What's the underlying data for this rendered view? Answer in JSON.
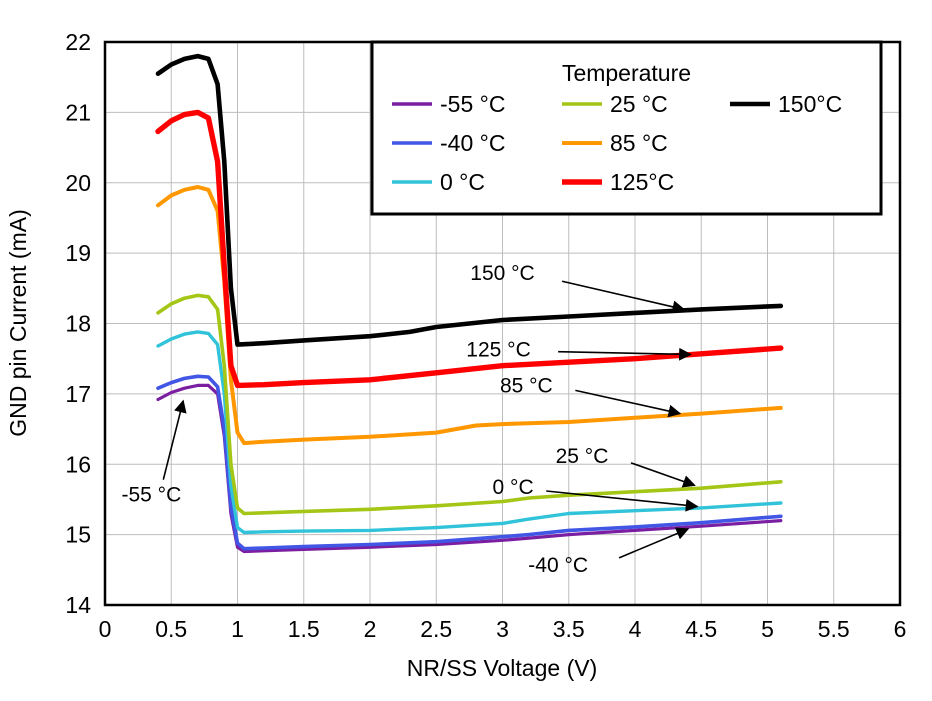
{
  "chart_data": {
    "type": "line",
    "title": "",
    "xlabel": "NR/SS Voltage (V)",
    "ylabel": "GND pin Current (mA)",
    "xlim": [
      0,
      6
    ],
    "ylim": [
      14,
      22
    ],
    "xticks": [
      0,
      0.5,
      1,
      1.5,
      2,
      2.5,
      3,
      3.5,
      4,
      4.5,
      5,
      5.5,
      6
    ],
    "yticks": [
      14,
      15,
      16,
      17,
      18,
      19,
      20,
      21,
      22
    ],
    "grid": true,
    "colors": {
      "grid": "#bdbdbd",
      "axis": "#000000",
      "background": "#ffffff"
    },
    "legend": {
      "title": "Temperature",
      "position": "top-right",
      "entries": [
        "-55 °C",
        "-40 °C",
        "0 °C",
        "25 °C",
        "85 °C",
        "125°C",
        "150°C"
      ]
    },
    "series": [
      {
        "name": "-55 °C",
        "color": "#7B1FA2",
        "width": 3.2,
        "points": [
          [
            0.4,
            16.92
          ],
          [
            0.5,
            17.02
          ],
          [
            0.6,
            17.08
          ],
          [
            0.7,
            17.12
          ],
          [
            0.78,
            17.12
          ],
          [
            0.85,
            17.0
          ],
          [
            0.9,
            16.4
          ],
          [
            0.95,
            15.3
          ],
          [
            1.0,
            14.82
          ],
          [
            1.05,
            14.76
          ],
          [
            1.2,
            14.77
          ],
          [
            1.5,
            14.79
          ],
          [
            2.0,
            14.82
          ],
          [
            2.5,
            14.86
          ],
          [
            3.0,
            14.92
          ],
          [
            3.2,
            14.95
          ],
          [
            3.5,
            15.0
          ],
          [
            4.0,
            15.06
          ],
          [
            4.5,
            15.12
          ],
          [
            5.1,
            15.2
          ]
        ]
      },
      {
        "name": "-40 °C",
        "color": "#4156E4",
        "width": 3.6,
        "points": [
          [
            0.4,
            17.08
          ],
          [
            0.5,
            17.16
          ],
          [
            0.6,
            17.22
          ],
          [
            0.7,
            17.25
          ],
          [
            0.78,
            17.24
          ],
          [
            0.85,
            17.1
          ],
          [
            0.9,
            16.5
          ],
          [
            0.95,
            15.4
          ],
          [
            1.0,
            14.88
          ],
          [
            1.05,
            14.8
          ],
          [
            1.2,
            14.81
          ],
          [
            1.5,
            14.83
          ],
          [
            2.0,
            14.86
          ],
          [
            2.5,
            14.9
          ],
          [
            3.0,
            14.97
          ],
          [
            3.2,
            15.0
          ],
          [
            3.5,
            15.06
          ],
          [
            4.0,
            15.11
          ],
          [
            4.5,
            15.17
          ],
          [
            5.1,
            15.26
          ]
        ]
      },
      {
        "name": "0 °C",
        "color": "#30C3D9",
        "width": 3.4,
        "points": [
          [
            0.4,
            17.68
          ],
          [
            0.5,
            17.78
          ],
          [
            0.6,
            17.85
          ],
          [
            0.7,
            17.88
          ],
          [
            0.78,
            17.86
          ],
          [
            0.85,
            17.7
          ],
          [
            0.9,
            17.0
          ],
          [
            0.95,
            15.7
          ],
          [
            1.0,
            15.1
          ],
          [
            1.05,
            15.03
          ],
          [
            1.2,
            15.04
          ],
          [
            1.5,
            15.05
          ],
          [
            2.0,
            15.06
          ],
          [
            2.5,
            15.1
          ],
          [
            3.0,
            15.16
          ],
          [
            3.2,
            15.22
          ],
          [
            3.5,
            15.3
          ],
          [
            4.0,
            15.34
          ],
          [
            4.5,
            15.38
          ],
          [
            5.1,
            15.45
          ]
        ]
      },
      {
        "name": "25 °C",
        "color": "#A4C616",
        "width": 3.6,
        "points": [
          [
            0.4,
            18.15
          ],
          [
            0.5,
            18.28
          ],
          [
            0.6,
            18.36
          ],
          [
            0.7,
            18.4
          ],
          [
            0.78,
            18.38
          ],
          [
            0.85,
            18.2
          ],
          [
            0.9,
            17.4
          ],
          [
            0.95,
            16.0
          ],
          [
            1.0,
            15.38
          ],
          [
            1.05,
            15.3
          ],
          [
            1.2,
            15.31
          ],
          [
            1.5,
            15.33
          ],
          [
            2.0,
            15.36
          ],
          [
            2.5,
            15.41
          ],
          [
            3.0,
            15.47
          ],
          [
            3.2,
            15.52
          ],
          [
            3.5,
            15.56
          ],
          [
            4.0,
            15.61
          ],
          [
            4.5,
            15.66
          ],
          [
            5.1,
            15.75
          ]
        ]
      },
      {
        "name": "85 °C",
        "color": "#FF9800",
        "width": 4,
        "points": [
          [
            0.4,
            19.68
          ],
          [
            0.5,
            19.82
          ],
          [
            0.6,
            19.9
          ],
          [
            0.7,
            19.94
          ],
          [
            0.78,
            19.9
          ],
          [
            0.85,
            19.6
          ],
          [
            0.9,
            18.6
          ],
          [
            0.95,
            17.2
          ],
          [
            1.0,
            16.45
          ],
          [
            1.05,
            16.3
          ],
          [
            1.2,
            16.32
          ],
          [
            1.5,
            16.35
          ],
          [
            2.0,
            16.39
          ],
          [
            2.5,
            16.45
          ],
          [
            2.8,
            16.55
          ],
          [
            3.0,
            16.57
          ],
          [
            3.5,
            16.6
          ],
          [
            4.0,
            16.66
          ],
          [
            4.5,
            16.72
          ],
          [
            5.1,
            16.8
          ]
        ]
      },
      {
        "name": "125°C",
        "color": "#FF0000",
        "width": 5.4,
        "points": [
          [
            0.4,
            20.73
          ],
          [
            0.5,
            20.88
          ],
          [
            0.6,
            20.97
          ],
          [
            0.7,
            21.0
          ],
          [
            0.78,
            20.92
          ],
          [
            0.85,
            20.3
          ],
          [
            0.9,
            18.8
          ],
          [
            0.95,
            17.4
          ],
          [
            1.0,
            17.12
          ],
          [
            1.2,
            17.13
          ],
          [
            1.5,
            17.16
          ],
          [
            2.0,
            17.2
          ],
          [
            2.5,
            17.3
          ],
          [
            3.0,
            17.4
          ],
          [
            3.5,
            17.45
          ],
          [
            4.0,
            17.5
          ],
          [
            4.5,
            17.57
          ],
          [
            5.1,
            17.65
          ]
        ]
      },
      {
        "name": "150°C",
        "color": "#000000",
        "width": 4.6,
        "points": [
          [
            0.4,
            21.55
          ],
          [
            0.5,
            21.68
          ],
          [
            0.6,
            21.76
          ],
          [
            0.7,
            21.8
          ],
          [
            0.78,
            21.76
          ],
          [
            0.85,
            21.4
          ],
          [
            0.9,
            20.3
          ],
          [
            0.95,
            18.5
          ],
          [
            1.0,
            17.7
          ],
          [
            1.2,
            17.72
          ],
          [
            1.5,
            17.76
          ],
          [
            2.0,
            17.82
          ],
          [
            2.3,
            17.88
          ],
          [
            2.5,
            17.95
          ],
          [
            3.0,
            18.05
          ],
          [
            3.5,
            18.1
          ],
          [
            4.0,
            18.15
          ],
          [
            4.5,
            18.2
          ],
          [
            5.1,
            18.25
          ]
        ]
      }
    ],
    "annotations": [
      {
        "label": "150 °C",
        "text": [
          3.0,
          18.72
        ],
        "line": [
          [
            3.45,
            18.6
          ],
          [
            4.37,
            18.2
          ]
        ]
      },
      {
        "label": "125 °C",
        "text": [
          2.97,
          17.63
        ],
        "line": [
          [
            3.42,
            17.6
          ],
          [
            4.42,
            17.56
          ]
        ]
      },
      {
        "label": "85 °C",
        "text": [
          3.18,
          17.12
        ],
        "line": [
          [
            3.55,
            17.05
          ],
          [
            4.34,
            16.72
          ]
        ]
      },
      {
        "label": "25 °C",
        "text": [
          3.6,
          16.12
        ],
        "line": [
          [
            3.97,
            16.02
          ],
          [
            4.45,
            15.7
          ]
        ]
      },
      {
        "label": "0 °C",
        "text": [
          3.08,
          15.68
        ],
        "line": [
          [
            3.33,
            15.62
          ],
          [
            4.47,
            15.4
          ]
        ]
      },
      {
        "label": "-40 °C",
        "text": [
          3.42,
          14.57
        ],
        "line": [
          [
            3.88,
            14.67
          ],
          [
            4.4,
            15.08
          ]
        ]
      },
      {
        "label": "-55 °C",
        "text": [
          0.35,
          15.57
        ],
        "line": [
          [
            0.44,
            15.78
          ],
          [
            0.59,
            16.9
          ]
        ]
      }
    ]
  }
}
